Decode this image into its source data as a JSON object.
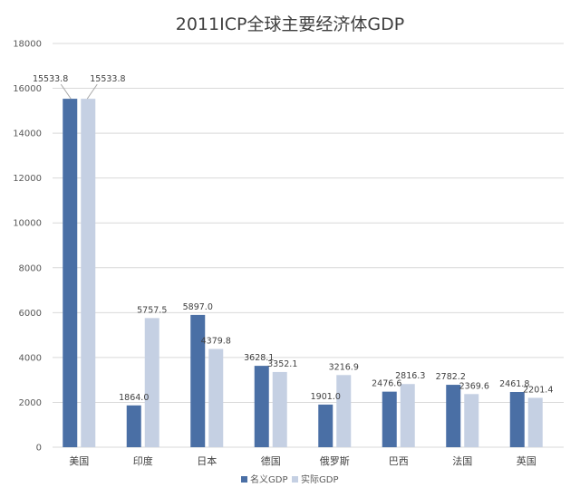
{
  "chart_data": {
    "type": "bar",
    "title": "2011ICP全球主要经济体GDP",
    "categories": [
      "美国",
      "印度",
      "日本",
      "德国",
      "俄罗斯",
      "巴西",
      "法国",
      "英国"
    ],
    "series": [
      {
        "name": "名义GDP",
        "color": "#4a6fa5",
        "values": [
          15533.8,
          1864.0,
          5897.0,
          3628.1,
          1901.0,
          2476.6,
          2782.2,
          2461.8
        ],
        "labels": [
          "15533.8",
          "1864.0",
          "5897.0",
          "3628.1",
          "1901.0",
          "2476.6",
          "2782.2",
          "2461.8"
        ]
      },
      {
        "name": "实际GDP",
        "color": "#c5d0e3",
        "values": [
          15533.8,
          5757.5,
          4379.8,
          3352.1,
          3216.9,
          2816.3,
          2369.6,
          2201.4
        ],
        "labels": [
          "15533.8",
          "5757.5",
          "4379.8",
          "3352.1",
          "3216.9",
          "2816.3",
          "2369.6",
          "2201.4"
        ]
      }
    ],
    "ylim": [
      0,
      18000
    ],
    "yticks": [
      "0",
      "2000",
      "4000",
      "6000",
      "8000",
      "10000",
      "12000",
      "14000",
      "16000",
      "18000"
    ],
    "grid": true,
    "legend": "bottom",
    "gridColor": "#d9d9d9"
  }
}
